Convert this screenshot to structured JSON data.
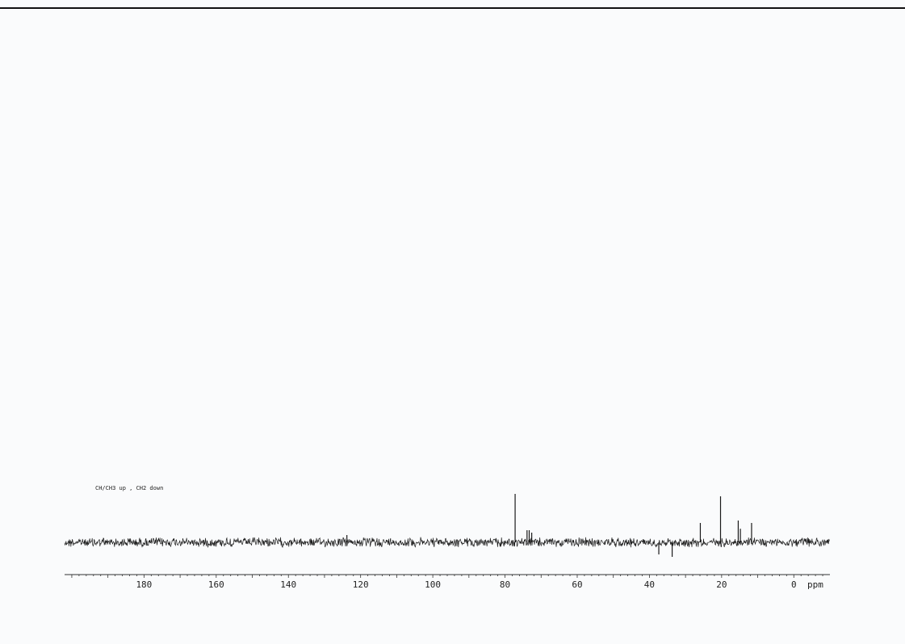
{
  "chart_data": {
    "type": "line",
    "title": "",
    "annotation": "CH/CH3 up , CH2 down",
    "xlabel": "",
    "x_unit": "ppm",
    "xlim": [
      202,
      -10
    ],
    "x_reversed": true,
    "x_ticks": [
      180,
      160,
      140,
      120,
      100,
      80,
      60,
      40,
      20,
      0
    ],
    "tick_labels": [
      "180",
      "160",
      "140",
      "120",
      "100",
      "80",
      "60",
      "40",
      "20",
      "0"
    ],
    "grid": false,
    "series": [
      {
        "peaks_ppm": [
          77.2,
          73.9,
          73.3,
          72.6,
          123.8,
          25.9,
          20.3,
          15.4,
          14.8,
          11.7,
          33.7,
          37.4
        ],
        "peaks_intensity": [
          1.0,
          0.25,
          0.25,
          0.2,
          0.15,
          0.4,
          0.95,
          0.45,
          0.28,
          0.4,
          -0.3,
          -0.25
        ]
      }
    ],
    "colors": {
      "trace": "#1a1a1a",
      "axis": "#333333"
    }
  }
}
